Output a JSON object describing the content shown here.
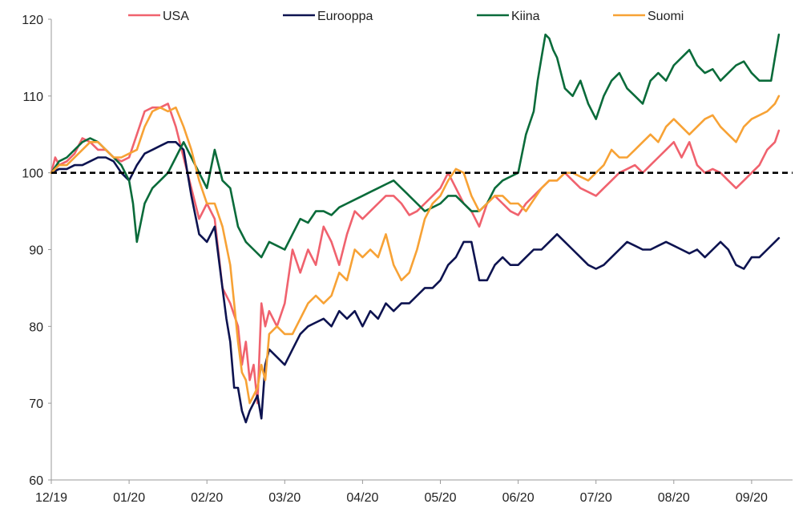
{
  "chart_data": {
    "type": "line",
    "title": "",
    "xlabel": "",
    "ylabel": "",
    "ylim": [
      60,
      120
    ],
    "xlim": [
      0,
      9.4
    ],
    "y_ticks": [
      60,
      70,
      80,
      90,
      100,
      110,
      120
    ],
    "x_ticks": [
      {
        "value": 0,
        "label": "12/19"
      },
      {
        "value": 1,
        "label": "01/20"
      },
      {
        "value": 2,
        "label": "02/20"
      },
      {
        "value": 3,
        "label": "03/20"
      },
      {
        "value": 4,
        "label": "04/20"
      },
      {
        "value": 5,
        "label": "05/20"
      },
      {
        "value": 6,
        "label": "06/20"
      },
      {
        "value": 7,
        "label": "07/20"
      },
      {
        "value": 8,
        "label": "08/20"
      },
      {
        "value": 9,
        "label": "09/20"
      }
    ],
    "reference_line": {
      "value": 100,
      "style": "dashed",
      "color": "#000000"
    },
    "legend_position": "top",
    "series": [
      {
        "name": "USA",
        "color": "#F0626E",
        "x": [
          0,
          0.05,
          0.1,
          0.2,
          0.3,
          0.4,
          0.5,
          0.6,
          0.7,
          0.8,
          0.9,
          1.0,
          1.1,
          1.2,
          1.3,
          1.4,
          1.5,
          1.6,
          1.7,
          1.8,
          1.9,
          2.0,
          2.1,
          2.2,
          2.3,
          2.4,
          2.45,
          2.5,
          2.55,
          2.6,
          2.65,
          2.7,
          2.75,
          2.8,
          2.9,
          3.0,
          3.1,
          3.2,
          3.3,
          3.4,
          3.5,
          3.6,
          3.7,
          3.8,
          3.9,
          4.0,
          4.1,
          4.2,
          4.3,
          4.4,
          4.5,
          4.6,
          4.7,
          4.8,
          4.9,
          5.0,
          5.1,
          5.2,
          5.3,
          5.4,
          5.5,
          5.6,
          5.7,
          5.8,
          5.9,
          6.0,
          6.1,
          6.2,
          6.3,
          6.4,
          6.5,
          6.6,
          6.7,
          6.8,
          6.9,
          7.0,
          7.1,
          7.2,
          7.3,
          7.4,
          7.5,
          7.6,
          7.7,
          7.8,
          7.9,
          8.0,
          8.1,
          8.2,
          8.3,
          8.4,
          8.5,
          8.6,
          8.7,
          8.8,
          8.9,
          9.0,
          9.1,
          9.2,
          9.3,
          9.35
        ],
        "values": [
          100,
          102,
          101,
          101.5,
          102.5,
          104.5,
          104,
          103,
          103,
          102,
          101.5,
          102,
          105,
          108,
          108.5,
          108.5,
          109,
          106,
          102,
          98,
          94,
          96,
          94,
          85,
          83,
          80,
          75,
          78,
          73,
          75,
          70,
          83,
          80,
          82,
          80,
          83,
          90,
          87,
          90,
          88,
          93,
          91,
          88,
          92,
          95,
          94,
          95,
          96,
          97,
          97,
          96,
          94.5,
          95,
          96,
          97,
          98,
          100,
          98,
          96,
          95,
          93,
          96,
          97,
          96,
          95,
          94.5,
          96,
          97,
          98,
          99,
          99,
          100,
          99,
          98,
          97.5,
          97,
          98,
          99,
          100,
          100.5,
          101,
          100,
          101,
          102,
          103,
          104,
          102,
          104,
          101,
          100,
          100.5,
          100,
          99,
          98,
          99,
          100,
          101,
          103,
          104,
          105.5
        ]
      },
      {
        "name": "Eurooppa",
        "color": "#0D1350",
        "x": [
          0,
          0.1,
          0.2,
          0.3,
          0.4,
          0.5,
          0.6,
          0.7,
          0.8,
          0.9,
          1.0,
          1.1,
          1.2,
          1.3,
          1.4,
          1.5,
          1.6,
          1.7,
          1.8,
          1.9,
          2.0,
          2.1,
          2.2,
          2.25,
          2.3,
          2.35,
          2.4,
          2.45,
          2.5,
          2.55,
          2.6,
          2.65,
          2.7,
          2.75,
          2.8,
          2.9,
          3.0,
          3.1,
          3.2,
          3.3,
          3.4,
          3.5,
          3.6,
          3.7,
          3.8,
          3.9,
          4.0,
          4.1,
          4.2,
          4.3,
          4.4,
          4.5,
          4.6,
          4.7,
          4.8,
          4.9,
          5.0,
          5.1,
          5.2,
          5.3,
          5.4,
          5.5,
          5.6,
          5.7,
          5.8,
          5.9,
          6.0,
          6.1,
          6.2,
          6.3,
          6.4,
          6.5,
          6.6,
          6.7,
          6.8,
          6.9,
          7.0,
          7.1,
          7.2,
          7.3,
          7.4,
          7.5,
          7.6,
          7.7,
          7.8,
          7.9,
          8.0,
          8.1,
          8.2,
          8.3,
          8.4,
          8.5,
          8.6,
          8.7,
          8.8,
          8.9,
          9.0,
          9.1,
          9.2,
          9.3,
          9.35
        ],
        "values": [
          100,
          100.5,
          100.5,
          101,
          101,
          101.5,
          102,
          102,
          101.5,
          100,
          99,
          101,
          102.5,
          103,
          103.5,
          104,
          104,
          103,
          97,
          92,
          91,
          93,
          85,
          81,
          78,
          72,
          72,
          69,
          67.5,
          69,
          70,
          71,
          68,
          75,
          77,
          76,
          75,
          77,
          79,
          80,
          80.5,
          81,
          80,
          82,
          81,
          82,
          80,
          82,
          81,
          83,
          82,
          83,
          83,
          84,
          85,
          85,
          86,
          88,
          89,
          91,
          91,
          86,
          86,
          88,
          89,
          88,
          88,
          89,
          90,
          90,
          91,
          92,
          91,
          90,
          89,
          88,
          87.5,
          88,
          89,
          90,
          91,
          90.5,
          90,
          90,
          90.5,
          91,
          90.5,
          90,
          89.5,
          90,
          89,
          90,
          91,
          90,
          88,
          87.5,
          89,
          89,
          90,
          91,
          91.5
        ]
      },
      {
        "name": "Kiina",
        "color": "#0A6B3A",
        "x": [
          0,
          0.1,
          0.2,
          0.3,
          0.4,
          0.5,
          0.6,
          0.7,
          0.8,
          0.9,
          1.0,
          1.05,
          1.1,
          1.2,
          1.3,
          1.4,
          1.5,
          1.6,
          1.7,
          1.8,
          1.9,
          2.0,
          2.1,
          2.2,
          2.3,
          2.4,
          2.5,
          2.6,
          2.7,
          2.8,
          2.9,
          3.0,
          3.1,
          3.2,
          3.3,
          3.4,
          3.5,
          3.6,
          3.7,
          3.8,
          3.9,
          4.0,
          4.1,
          4.2,
          4.3,
          4.4,
          4.5,
          4.6,
          4.7,
          4.8,
          4.9,
          5.0,
          5.1,
          5.2,
          5.3,
          5.4,
          5.5,
          5.6,
          5.7,
          5.8,
          5.9,
          6.0,
          6.1,
          6.2,
          6.25,
          6.3,
          6.35,
          6.4,
          6.45,
          6.5,
          6.6,
          6.7,
          6.8,
          6.9,
          7.0,
          7.1,
          7.2,
          7.3,
          7.4,
          7.5,
          7.6,
          7.7,
          7.8,
          7.9,
          8.0,
          8.1,
          8.2,
          8.3,
          8.4,
          8.5,
          8.6,
          8.7,
          8.8,
          8.9,
          9.0,
          9.1,
          9.2,
          9.25,
          9.3,
          9.35
        ],
        "values": [
          100,
          101.5,
          102,
          103,
          104,
          104.5,
          104,
          103,
          102,
          101,
          99,
          96,
          91,
          96,
          98,
          99,
          100,
          102,
          104,
          102,
          100,
          98,
          103,
          99,
          98,
          93,
          91,
          90,
          89,
          91,
          90.5,
          90,
          92,
          94,
          93.5,
          95,
          95,
          94.5,
          95.5,
          96,
          96.5,
          97,
          97.5,
          98,
          98.5,
          99,
          98,
          97,
          96,
          95,
          95.5,
          96,
          97,
          97,
          96,
          95,
          95,
          96,
          98,
          99,
          99.5,
          100,
          105,
          108,
          112,
          115,
          118,
          117.5,
          116,
          115,
          111,
          110,
          112,
          109,
          107,
          110,
          112,
          113,
          111,
          110,
          109,
          112,
          113,
          112,
          114,
          115,
          116,
          114,
          113,
          113.5,
          112,
          113,
          114,
          114.5,
          113,
          112,
          112,
          112,
          115,
          118
        ]
      },
      {
        "name": "Suomi",
        "color": "#F7A235",
        "x": [
          0,
          0.1,
          0.2,
          0.3,
          0.4,
          0.5,
          0.6,
          0.7,
          0.8,
          0.9,
          1.0,
          1.1,
          1.2,
          1.3,
          1.4,
          1.5,
          1.6,
          1.7,
          1.8,
          1.9,
          2.0,
          2.1,
          2.2,
          2.3,
          2.35,
          2.4,
          2.45,
          2.5,
          2.55,
          2.6,
          2.65,
          2.7,
          2.75,
          2.8,
          2.9,
          3.0,
          3.1,
          3.2,
          3.3,
          3.4,
          3.5,
          3.6,
          3.7,
          3.8,
          3.9,
          4.0,
          4.1,
          4.2,
          4.3,
          4.4,
          4.5,
          4.6,
          4.7,
          4.8,
          4.9,
          5.0,
          5.1,
          5.2,
          5.3,
          5.4,
          5.5,
          5.6,
          5.7,
          5.8,
          5.9,
          6.0,
          6.1,
          6.2,
          6.3,
          6.4,
          6.5,
          6.6,
          6.7,
          6.8,
          6.9,
          7.0,
          7.1,
          7.2,
          7.3,
          7.4,
          7.5,
          7.6,
          7.7,
          7.8,
          7.9,
          8.0,
          8.1,
          8.2,
          8.3,
          8.4,
          8.5,
          8.6,
          8.7,
          8.8,
          8.9,
          9.0,
          9.1,
          9.2,
          9.3,
          9.35
        ],
        "values": [
          100,
          101,
          101,
          102,
          103,
          104,
          104,
          103,
          102,
          102,
          102.5,
          103,
          106,
          108,
          108.5,
          108,
          108.5,
          106,
          103,
          99,
          96,
          96,
          93,
          88,
          83,
          78,
          74,
          73,
          70,
          71,
          72,
          75,
          73,
          79,
          80,
          79,
          79,
          81,
          83,
          84,
          83,
          84,
          87,
          86,
          90,
          89,
          90,
          89,
          92,
          88,
          86,
          87,
          90,
          94,
          96,
          97,
          99,
          100.5,
          100,
          97,
          95,
          96,
          97,
          97,
          96,
          96,
          95,
          96.5,
          98,
          99,
          99,
          100,
          100,
          99.5,
          99,
          100,
          101,
          103,
          102,
          102,
          103,
          104,
          105,
          104,
          106,
          107,
          106,
          105,
          106,
          107,
          107.5,
          106,
          105,
          104,
          106,
          107,
          107.5,
          108,
          109,
          110
        ]
      }
    ]
  }
}
